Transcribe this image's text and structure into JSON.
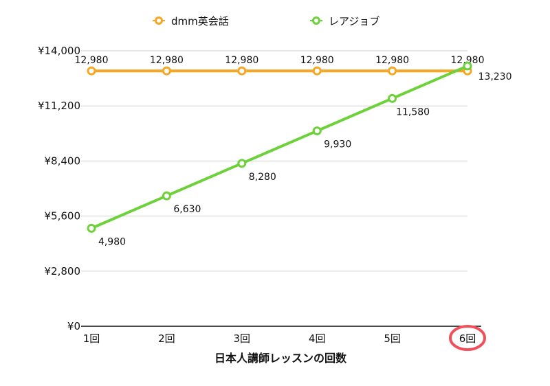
{
  "chart_data": {
    "type": "line",
    "categories": [
      "1回",
      "2回",
      "3回",
      "4回",
      "5回",
      "6回"
    ],
    "series": [
      {
        "name": "dmm英会話",
        "color": "#F5A623",
        "values": [
          12980,
          12980,
          12980,
          12980,
          12980,
          12980
        ],
        "data_labels": [
          "12,980",
          "12,980",
          "12,980",
          "12,980",
          "12,980",
          "12,980"
        ]
      },
      {
        "name": "レアジョブ",
        "color": "#6DD13A",
        "values": [
          4980,
          6630,
          8280,
          9930,
          11580,
          13230
        ],
        "data_labels": [
          "4,980",
          "6,630",
          "8,280",
          "9,930",
          "11,580",
          "13,230"
        ]
      }
    ],
    "y_ticks": [
      0,
      2800,
      5600,
      8400,
      11200,
      14000
    ],
    "y_tick_labels": [
      "¥0",
      "¥2,800",
      "¥5,600",
      "¥8,400",
      "¥11,200",
      "¥14,000"
    ],
    "ylim": [
      0,
      14000
    ],
    "xlabel": "日本人講師レッスンの回数",
    "ylabel": "",
    "title": "",
    "grid": true,
    "legend_position": "top",
    "highlighted_category": "6回",
    "highlight_color": "#F0505A"
  }
}
